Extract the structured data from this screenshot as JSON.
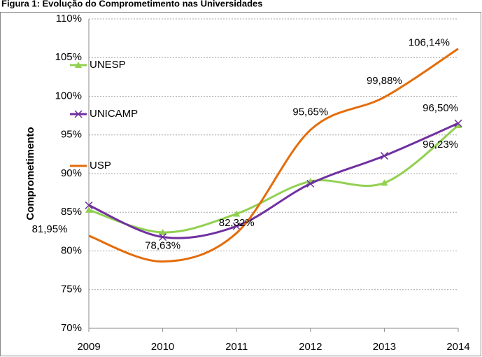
{
  "chart_data": {
    "type": "line",
    "title": "Figura 1: Evolução do Comprometimento nas Universidades",
    "y_label": "Comprometimento",
    "x": [
      2009,
      2010,
      2011,
      2012,
      2013,
      2014
    ],
    "xlim": [
      2009,
      2014
    ],
    "xticks": [
      2009,
      2010,
      2011,
      2012,
      2013,
      2014
    ],
    "ylim": [
      70,
      110
    ],
    "yticks": [
      {
        "value": 70,
        "label": "70%"
      },
      {
        "value": 75,
        "label": "75%"
      },
      {
        "value": 80,
        "label": "80%"
      },
      {
        "value": 85,
        "label": "85%"
      },
      {
        "value": 90,
        "label": "90%"
      },
      {
        "value": 95,
        "label": "95%"
      },
      {
        "value": 100,
        "label": "100%"
      },
      {
        "value": 105,
        "label": "105%"
      },
      {
        "value": 110,
        "label": "110%"
      }
    ],
    "grid": true,
    "legend": "left",
    "series": [
      {
        "name": "UNESP",
        "color": "#92d050",
        "marker": "triangle",
        "values": [
          85.3,
          82.4,
          84.8,
          89.0,
          88.8,
          96.23
        ],
        "value_labels": [
          null,
          null,
          null,
          null,
          null,
          "96,23%"
        ]
      },
      {
        "name": "UNICAMP",
        "color": "#7030a0",
        "marker": "x",
        "values": [
          85.9,
          81.8,
          83.2,
          88.7,
          92.3,
          96.5
        ],
        "value_labels": [
          null,
          null,
          null,
          null,
          null,
          "96,50%"
        ]
      },
      {
        "name": "USP",
        "color": "#e46c0a",
        "marker": "none",
        "values": [
          81.95,
          78.63,
          82.32,
          95.65,
          99.88,
          106.14
        ],
        "value_labels": [
          "81,95%",
          "78,63%",
          "82,32%",
          "95,65%",
          "99,88%",
          "106,14%"
        ]
      }
    ]
  }
}
